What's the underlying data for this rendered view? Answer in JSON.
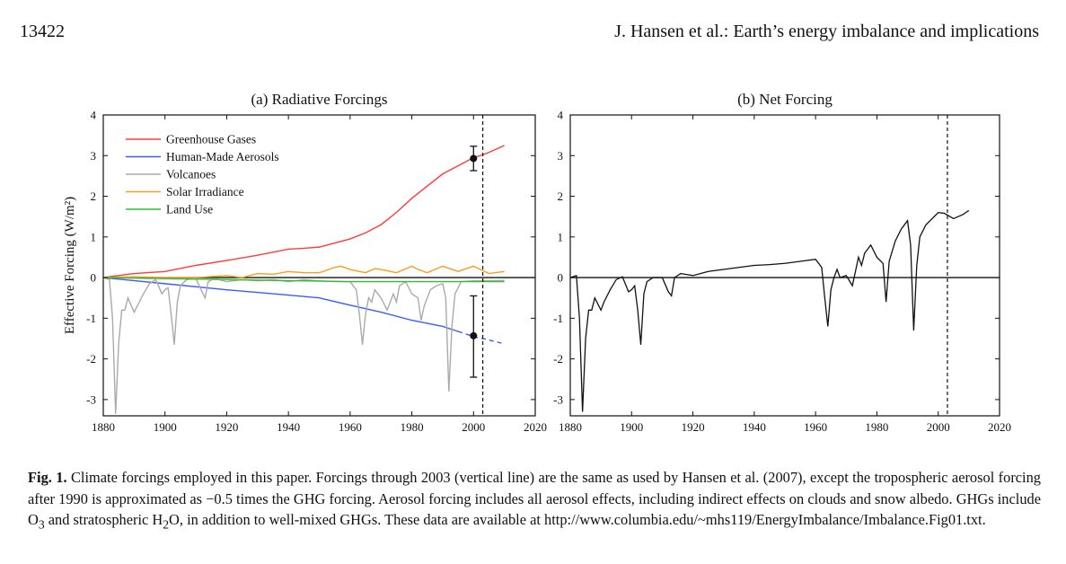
{
  "header": {
    "page_number": "13422",
    "running_title": "J. Hansen et al.: Earth’s energy imbalance and implications"
  },
  "caption": {
    "label": "Fig. 1.",
    "text_1": " Climate forcings employed in this paper. Forcings through 2003 (vertical line) are the same as used by Hansen et al. (2007), except the tropospheric aerosol forcing after 1990 is approximated as −0.5 times the GHG forcing. Aerosol forcing includes all aerosol effects, including indirect effects on clouds and snow albedo. GHGs include O",
    "sub_1": "3",
    "text_2": " and stratospheric H",
    "sub_2": "2",
    "text_3": "O, in addition to well-mixed GHGs. These data are available at http://www.columbia.edu/~mhs119/EnergyImbalance/Imbalance.Fig01.txt."
  },
  "chart_data": [
    {
      "type": "line",
      "title": "(a)  Radiative Forcings",
      "xlabel": "",
      "ylabel": "Effective Forcing (W/m²)",
      "xlim": [
        1880,
        2020
      ],
      "ylim": [
        -3.4,
        4
      ],
      "xticks": [
        1880,
        1900,
        1920,
        1940,
        1960,
        1980,
        2000,
        2020
      ],
      "yticks": [
        -3,
        -2,
        -1,
        0,
        1,
        2,
        3,
        4
      ],
      "grid": false,
      "legend_position": "top-left",
      "reference_lines": {
        "horizontal_zero": true,
        "vertical_dashed_x": 2003
      },
      "series": [
        {
          "name": "Greenhouse Gases",
          "color": "#ff3b3b",
          "x": [
            1880,
            1890,
            1900,
            1910,
            1920,
            1930,
            1940,
            1945,
            1950,
            1960,
            1965,
            1970,
            1975,
            1980,
            1985,
            1990,
            1995,
            2000,
            2003,
            2005,
            2010
          ],
          "values": [
            0.0,
            0.1,
            0.15,
            0.3,
            0.42,
            0.55,
            0.7,
            0.72,
            0.75,
            0.95,
            1.1,
            1.3,
            1.6,
            1.95,
            2.25,
            2.55,
            2.75,
            2.95,
            3.02,
            3.08,
            3.25
          ]
        },
        {
          "name": "Human-Made Aerosols",
          "color": "#3a5cff",
          "x": [
            1880,
            1900,
            1920,
            1940,
            1950,
            1960,
            1970,
            1980,
            1990,
            2000,
            2003,
            2010
          ],
          "values": [
            0.0,
            -0.15,
            -0.3,
            -0.43,
            -0.5,
            -0.68,
            -0.85,
            -1.05,
            -1.2,
            -1.45,
            -1.5,
            -1.63
          ],
          "dashed_after_x": 1995
        },
        {
          "name": "Volcanoes",
          "color": "#aaaaaa",
          "x": [
            1880,
            1882,
            1883,
            1884,
            1885,
            1886,
            1887,
            1888,
            1890,
            1891,
            1893,
            1895,
            1897,
            1899,
            1900,
            1901,
            1902,
            1903,
            1904,
            1905,
            1907,
            1910,
            1912,
            1913,
            1914,
            1916,
            1920,
            1925,
            1930,
            1935,
            1940,
            1945,
            1950,
            1955,
            1960,
            1962,
            1963,
            1964,
            1965,
            1966,
            1967,
            1968,
            1970,
            1972,
            1974,
            1975,
            1976,
            1978,
            1980,
            1982,
            1983,
            1984,
            1986,
            1988,
            1990,
            1991,
            1992,
            1993,
            1994,
            1996,
            2000,
            2005,
            2010
          ],
          "values": [
            0.0,
            -0.05,
            -1.0,
            -3.35,
            -1.6,
            -0.8,
            -0.8,
            -0.5,
            -0.85,
            -0.7,
            -0.4,
            -0.15,
            -0.05,
            -0.4,
            -0.3,
            -0.25,
            -0.9,
            -1.65,
            -0.6,
            -0.2,
            -0.05,
            -0.02,
            -0.35,
            -0.5,
            -0.1,
            -0.02,
            -0.1,
            -0.05,
            -0.08,
            -0.05,
            -0.1,
            -0.05,
            -0.08,
            -0.1,
            -0.1,
            -0.3,
            -0.9,
            -1.65,
            -0.9,
            -0.5,
            -0.6,
            -0.3,
            -0.5,
            -0.8,
            -0.4,
            -0.6,
            -0.2,
            -0.1,
            -0.4,
            -0.5,
            -1.05,
            -0.7,
            -0.3,
            -0.2,
            -0.15,
            -0.5,
            -2.8,
            -1.2,
            -0.4,
            -0.1,
            -0.08,
            -0.08,
            -0.07
          ]
        },
        {
          "name": "Solar Irradiance",
          "color": "#ff9a1f",
          "x": [
            1880,
            1890,
            1900,
            1910,
            1920,
            1925,
            1930,
            1935,
            1940,
            1945,
            1950,
            1955,
            1957,
            1960,
            1965,
            1968,
            1970,
            1975,
            1980,
            1982,
            1985,
            1990,
            1995,
            2000,
            2005,
            2010
          ],
          "values": [
            0.0,
            0.02,
            0.0,
            0.0,
            0.05,
            0.0,
            0.1,
            0.08,
            0.15,
            0.12,
            0.12,
            0.25,
            0.28,
            0.2,
            0.12,
            0.22,
            0.2,
            0.12,
            0.28,
            0.2,
            0.12,
            0.28,
            0.15,
            0.28,
            0.1,
            0.15
          ]
        },
        {
          "name": "Land Use",
          "color": "#2fbf2f",
          "x": [
            1880,
            1920,
            1960,
            2000,
            2010
          ],
          "values": [
            0.0,
            -0.05,
            -0.1,
            -0.1,
            -0.1
          ]
        }
      ],
      "error_bars": [
        {
          "x": 2000,
          "y": 2.93,
          "low": 2.63,
          "high": 3.23,
          "color": "#111111"
        },
        {
          "x": 2000,
          "y": -1.43,
          "low": -2.45,
          "high": -0.45,
          "color": "#111111"
        }
      ]
    },
    {
      "type": "line",
      "title": "(b)  Net Forcing",
      "xlabel": "",
      "ylabel": "",
      "xlim": [
        1880,
        2020
      ],
      "ylim": [
        -3.4,
        4
      ],
      "xticks": [
        1880,
        1900,
        1920,
        1940,
        1960,
        1980,
        2000,
        2020
      ],
      "yticks": [
        -3,
        -2,
        -1,
        0,
        1,
        2,
        3,
        4
      ],
      "grid": false,
      "reference_lines": {
        "horizontal_zero": true,
        "vertical_dashed_x": 2003
      },
      "series": [
        {
          "name": "",
          "color": "#111111",
          "x": [
            1880,
            1882,
            1883,
            1884,
            1885,
            1886,
            1887,
            1888,
            1890,
            1891,
            1893,
            1895,
            1897,
            1899,
            1900,
            1901,
            1902,
            1903,
            1904,
            1905,
            1907,
            1910,
            1912,
            1913,
            1914,
            1916,
            1920,
            1925,
            1930,
            1935,
            1940,
            1945,
            1950,
            1955,
            1960,
            1962,
            1963,
            1964,
            1965,
            1966,
            1967,
            1968,
            1970,
            1972,
            1974,
            1975,
            1976,
            1978,
            1980,
            1982,
            1983,
            1984,
            1986,
            1988,
            1990,
            1991,
            1992,
            1993,
            1994,
            1996,
            2000,
            2002,
            2005,
            2008,
            2010
          ],
          "values": [
            0.0,
            0.05,
            -1.0,
            -3.3,
            -1.5,
            -0.8,
            -0.8,
            -0.5,
            -0.8,
            -0.6,
            -0.3,
            -0.05,
            0.02,
            -0.35,
            -0.3,
            -0.2,
            -0.8,
            -1.65,
            -0.4,
            -0.1,
            0.0,
            0.0,
            -0.35,
            -0.45,
            0.0,
            0.1,
            0.05,
            0.15,
            0.2,
            0.25,
            0.3,
            0.32,
            0.35,
            0.4,
            0.45,
            0.25,
            -0.5,
            -1.2,
            -0.3,
            0.0,
            0.2,
            0.0,
            0.05,
            -0.2,
            0.5,
            0.3,
            0.6,
            0.8,
            0.5,
            0.35,
            -0.6,
            0.4,
            0.9,
            1.2,
            1.4,
            0.8,
            -1.3,
            0.3,
            1.0,
            1.3,
            1.6,
            1.58,
            1.45,
            1.55,
            1.65
          ]
        }
      ]
    }
  ]
}
